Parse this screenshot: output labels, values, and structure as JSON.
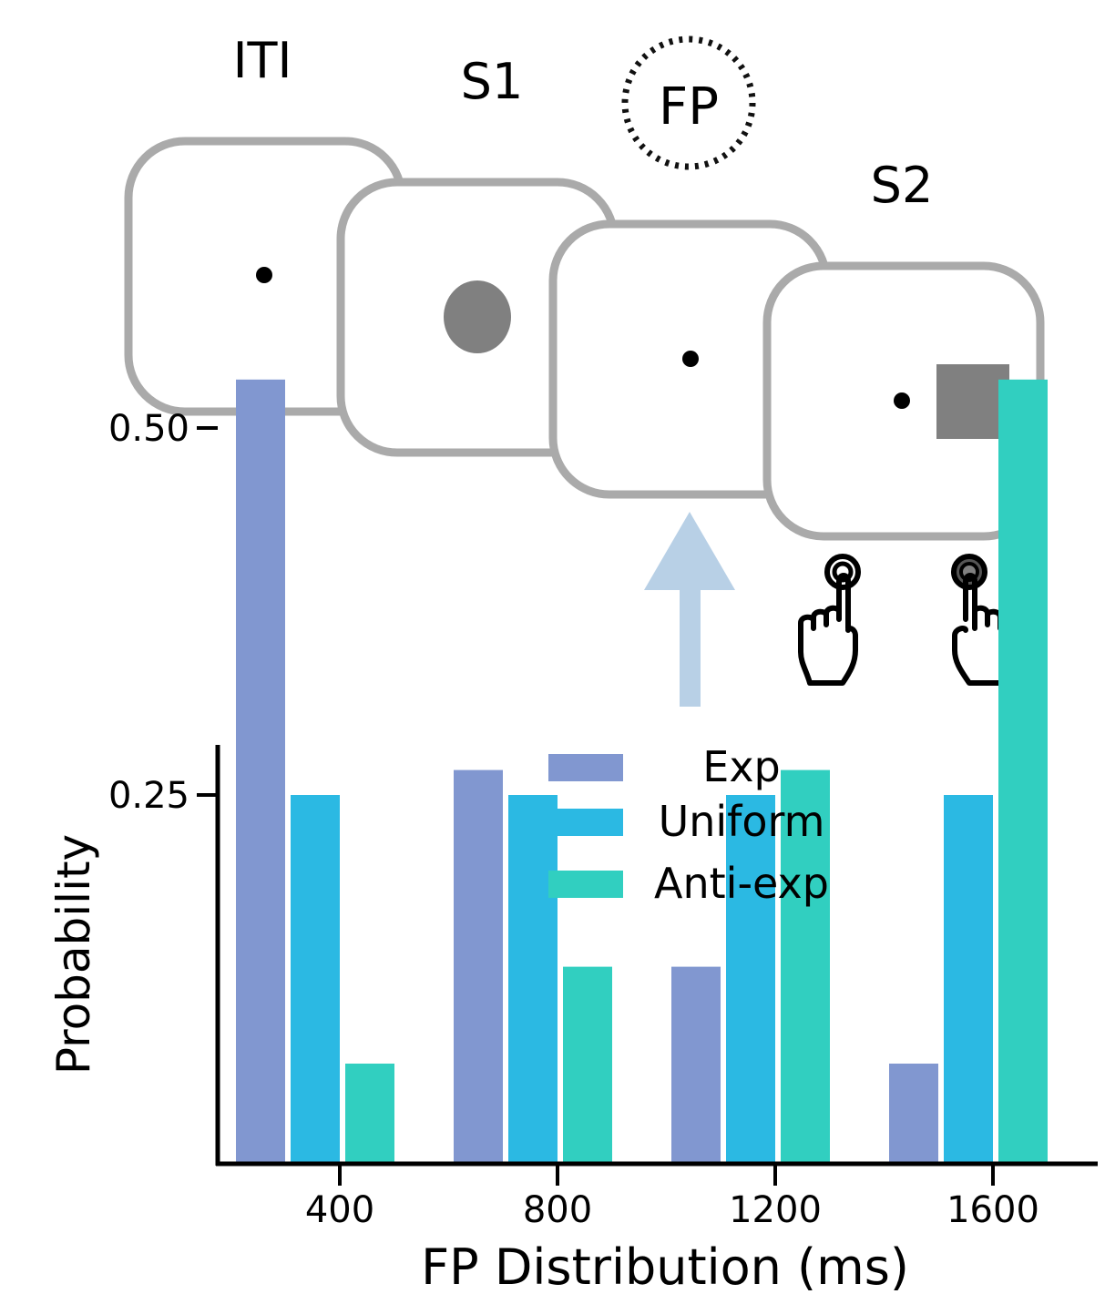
{
  "task": {
    "phase_labels": {
      "iti": "ITI",
      "s1": "S1",
      "fp": "FP",
      "s2": "S2"
    }
  },
  "colors": {
    "frame": "#aaaaaa",
    "stimulus": "#808080",
    "arrow": "#b8d0e6",
    "exp": "#8197d0",
    "uniform": "#2bb9e3",
    "antiexp": "#31cfc0"
  },
  "icons": [
    "fixation-dot",
    "gray-circle-stimulus",
    "gray-square-stimulus",
    "up-arrow",
    "pointing-hand-icon"
  ],
  "chart_data": {
    "type": "bar",
    "categories": [
      "400",
      "800",
      "1200",
      "1600"
    ],
    "series": [
      {
        "name": "Exp",
        "values": [
          0.533,
          0.267,
          0.133,
          0.067
        ]
      },
      {
        "name": "Uniform",
        "values": [
          0.25,
          0.25,
          0.25,
          0.25
        ]
      },
      {
        "name": "Anti-exp",
        "values": [
          0.067,
          0.133,
          0.267,
          0.533
        ]
      }
    ],
    "xlabel": "FP Distribution (ms)",
    "ylabel": "Probability",
    "yticks": [
      "0.25",
      "0.50"
    ],
    "ytick_values": [
      0.25,
      0.5
    ],
    "ylim": [
      0,
      0.6
    ],
    "legend_position": "top-center",
    "grid": false
  }
}
